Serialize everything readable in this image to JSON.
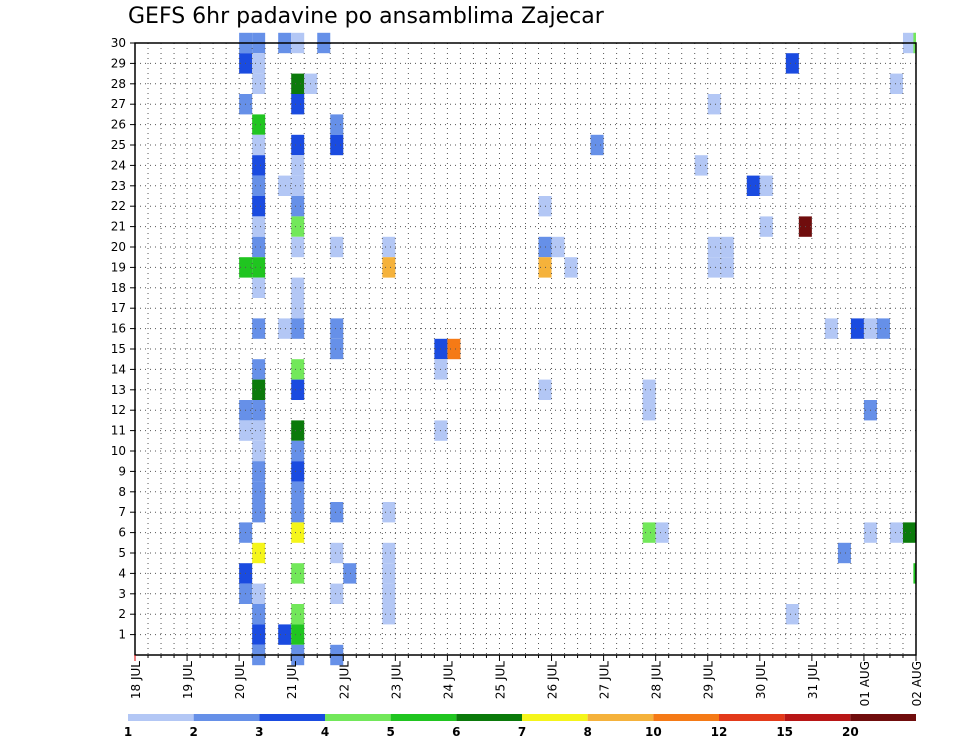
{
  "chart_data": {
    "type": "heatmap",
    "title": "GEFS 6hr padavine po ansamblima Zajecar",
    "xlabel": "",
    "ylabel": "",
    "x_tick_labels": [
      "18 JUL",
      "19 JUL",
      "20 JUL",
      "21 JUL",
      "22 JUL",
      "23 JUL",
      "24 JUL",
      "25 JUL",
      "26 JUL",
      "27 JUL",
      "28 JUL",
      "29 JUL",
      "30 JUL",
      "31 JUL",
      "01 AUG",
      "02 AUG"
    ],
    "y_tick_labels": [
      "1",
      "2",
      "3",
      "4",
      "5",
      "6",
      "7",
      "8",
      "9",
      "10",
      "11",
      "12",
      "13",
      "14",
      "15",
      "16",
      "17",
      "18",
      "19",
      "20",
      "21",
      "22",
      "23",
      "24",
      "25",
      "26",
      "27",
      "28",
      "29",
      "30"
    ],
    "x_range_days": [
      0,
      15
    ],
    "y_range_members": [
      0,
      30
    ],
    "grid": true,
    "time_step_days": 0.25,
    "colorbar": {
      "bounds": [
        "1",
        "2",
        "3",
        "4",
        "5",
        "6",
        "7",
        "8",
        "10",
        "12",
        "15",
        "20"
      ],
      "colors": [
        "#b3c7f5",
        "#6690e8",
        "#1a4be0",
        "#72e85a",
        "#20c520",
        "#0b7a0b",
        "#f5f51a",
        "#f5b23b",
        "#f57a16",
        "#e33a1a",
        "#b81616",
        "#700d0d"
      ]
    },
    "cells": [
      {
        "day": 2.0,
        "member": 30,
        "value": 2.5
      },
      {
        "day": 2.25,
        "member": 30,
        "value": 2.5
      },
      {
        "day": 2.75,
        "member": 30,
        "value": 2.5
      },
      {
        "day": 3.0,
        "member": 30,
        "value": 1.5
      },
      {
        "day": 3.5,
        "member": 30,
        "value": 2.5
      },
      {
        "day": 14.75,
        "member": 30,
        "value": 1.5
      },
      {
        "day": 14.95,
        "member": 30,
        "value": 4.5
      },
      {
        "day": 2.0,
        "member": 29,
        "value": 3.5
      },
      {
        "day": 2.25,
        "member": 29,
        "value": 1.5
      },
      {
        "day": 12.5,
        "member": 29,
        "value": 3.5
      },
      {
        "day": 2.25,
        "member": 28,
        "value": 1.5
      },
      {
        "day": 3.0,
        "member": 28,
        "value": 6.5
      },
      {
        "day": 3.25,
        "member": 28,
        "value": 1.5
      },
      {
        "day": 14.5,
        "member": 28,
        "value": 1.5
      },
      {
        "day": 2.0,
        "member": 27,
        "value": 2.5
      },
      {
        "day": 3.0,
        "member": 27,
        "value": 3.5
      },
      {
        "day": 11.0,
        "member": 27,
        "value": 1.5
      },
      {
        "day": 2.25,
        "member": 26,
        "value": 5.5
      },
      {
        "day": 3.75,
        "member": 26,
        "value": 2.5
      },
      {
        "day": 2.25,
        "member": 25,
        "value": 1.5
      },
      {
        "day": 3.0,
        "member": 25,
        "value": 3.5
      },
      {
        "day": 3.75,
        "member": 25,
        "value": 3.5
      },
      {
        "day": 8.75,
        "member": 25,
        "value": 2.5
      },
      {
        "day": 2.25,
        "member": 24,
        "value": 3.5
      },
      {
        "day": 3.0,
        "member": 24,
        "value": 1.5
      },
      {
        "day": 10.75,
        "member": 24,
        "value": 1.5
      },
      {
        "day": 2.25,
        "member": 23,
        "value": 2.5
      },
      {
        "day": 2.75,
        "member": 23,
        "value": 1.5
      },
      {
        "day": 3.0,
        "member": 23,
        "value": 1.5
      },
      {
        "day": 11.75,
        "member": 23,
        "value": 3.5
      },
      {
        "day": 12.0,
        "member": 23,
        "value": 1.5
      },
      {
        "day": 2.25,
        "member": 22,
        "value": 3.5
      },
      {
        "day": 3.0,
        "member": 22,
        "value": 2.5
      },
      {
        "day": 7.75,
        "member": 22,
        "value": 1.5
      },
      {
        "day": 2.25,
        "member": 21,
        "value": 1.5
      },
      {
        "day": 3.0,
        "member": 21,
        "value": 4.5
      },
      {
        "day": 12.0,
        "member": 21,
        "value": 1.5
      },
      {
        "day": 12.75,
        "member": 21,
        "value": 25
      },
      {
        "day": 2.25,
        "member": 20,
        "value": 2.5
      },
      {
        "day": 3.0,
        "member": 20,
        "value": 1.5
      },
      {
        "day": 3.75,
        "member": 20,
        "value": 1.5
      },
      {
        "day": 4.75,
        "member": 20,
        "value": 1.5
      },
      {
        "day": 7.75,
        "member": 20,
        "value": 2.5
      },
      {
        "day": 8.0,
        "member": 20,
        "value": 1.5
      },
      {
        "day": 11.0,
        "member": 20,
        "value": 1.5
      },
      {
        "day": 11.25,
        "member": 20,
        "value": 1.5
      },
      {
        "day": 2.0,
        "member": 19,
        "value": 5.5
      },
      {
        "day": 2.25,
        "member": 19,
        "value": 5.5
      },
      {
        "day": 4.75,
        "member": 19,
        "value": 9
      },
      {
        "day": 7.75,
        "member": 19,
        "value": 9
      },
      {
        "day": 8.25,
        "member": 19,
        "value": 1.5
      },
      {
        "day": 11.0,
        "member": 19,
        "value": 1.5
      },
      {
        "day": 11.25,
        "member": 19,
        "value": 1.5
      },
      {
        "day": 2.25,
        "member": 18,
        "value": 1.5
      },
      {
        "day": 3.0,
        "member": 18,
        "value": 1.5
      },
      {
        "day": 3.0,
        "member": 17,
        "value": 1.5
      },
      {
        "day": 2.25,
        "member": 16,
        "value": 2.5
      },
      {
        "day": 2.75,
        "member": 16,
        "value": 1.5
      },
      {
        "day": 3.0,
        "member": 16,
        "value": 2.5
      },
      {
        "day": 3.75,
        "member": 16,
        "value": 2.5
      },
      {
        "day": 13.25,
        "member": 16,
        "value": 1.5
      },
      {
        "day": 13.75,
        "member": 16,
        "value": 3.5
      },
      {
        "day": 14.0,
        "member": 16,
        "value": 1.5
      },
      {
        "day": 14.25,
        "member": 16,
        "value": 2.5
      },
      {
        "day": 3.75,
        "member": 15,
        "value": 2.5
      },
      {
        "day": 5.75,
        "member": 15,
        "value": 3.5
      },
      {
        "day": 6.0,
        "member": 15,
        "value": 11
      },
      {
        "day": 2.25,
        "member": 14,
        "value": 2.5
      },
      {
        "day": 3.0,
        "member": 14,
        "value": 4.5
      },
      {
        "day": 5.75,
        "member": 14,
        "value": 1.5
      },
      {
        "day": 2.25,
        "member": 13,
        "value": 6.5
      },
      {
        "day": 3.0,
        "member": 13,
        "value": 3.5
      },
      {
        "day": 7.75,
        "member": 13,
        "value": 1.5
      },
      {
        "day": 9.75,
        "member": 13,
        "value": 1.5
      },
      {
        "day": 2.0,
        "member": 12,
        "value": 2.5
      },
      {
        "day": 2.25,
        "member": 12,
        "value": 2.5
      },
      {
        "day": 9.75,
        "member": 12,
        "value": 1.5
      },
      {
        "day": 14.0,
        "member": 12,
        "value": 2.5
      },
      {
        "day": 2.0,
        "member": 11,
        "value": 1.5
      },
      {
        "day": 2.25,
        "member": 11,
        "value": 1.5
      },
      {
        "day": 3.0,
        "member": 11,
        "value": 6.5
      },
      {
        "day": 5.75,
        "member": 11,
        "value": 1.5
      },
      {
        "day": 2.25,
        "member": 10,
        "value": 1.5
      },
      {
        "day": 3.0,
        "member": 10,
        "value": 2.5
      },
      {
        "day": 2.25,
        "member": 9,
        "value": 2.5
      },
      {
        "day": 3.0,
        "member": 9,
        "value": 3.5
      },
      {
        "day": 2.25,
        "member": 8,
        "value": 2.5
      },
      {
        "day": 3.0,
        "member": 8,
        "value": 2.5
      },
      {
        "day": 2.25,
        "member": 7,
        "value": 2.5
      },
      {
        "day": 3.0,
        "member": 7,
        "value": 2.5
      },
      {
        "day": 3.75,
        "member": 7,
        "value": 2.5
      },
      {
        "day": 4.75,
        "member": 7,
        "value": 1.5
      },
      {
        "day": 2.0,
        "member": 6,
        "value": 2.5
      },
      {
        "day": 3.0,
        "member": 6,
        "value": 7.5
      },
      {
        "day": 9.75,
        "member": 6,
        "value": 4.5
      },
      {
        "day": 10.0,
        "member": 6,
        "value": 1.5
      },
      {
        "day": 14.0,
        "member": 6,
        "value": 1.5
      },
      {
        "day": 14.5,
        "member": 6,
        "value": 1.5
      },
      {
        "day": 14.75,
        "member": 6,
        "value": 6.5
      },
      {
        "day": 2.25,
        "member": 5,
        "value": 7.5
      },
      {
        "day": 3.75,
        "member": 5,
        "value": 1.5
      },
      {
        "day": 4.75,
        "member": 5,
        "value": 1.5
      },
      {
        "day": 13.5,
        "member": 5,
        "value": 2.5
      },
      {
        "day": 2.0,
        "member": 4,
        "value": 3.5
      },
      {
        "day": 3.0,
        "member": 4,
        "value": 4.5
      },
      {
        "day": 4.0,
        "member": 4,
        "value": 2.5
      },
      {
        "day": 4.75,
        "member": 4,
        "value": 1.5
      },
      {
        "day": 14.95,
        "member": 4,
        "value": 5.5
      },
      {
        "day": 2.0,
        "member": 3,
        "value": 2.5
      },
      {
        "day": 2.25,
        "member": 3,
        "value": 1.5
      },
      {
        "day": 3.75,
        "member": 3,
        "value": 1.5
      },
      {
        "day": 4.75,
        "member": 3,
        "value": 1.5
      },
      {
        "day": 2.25,
        "member": 2,
        "value": 2.5
      },
      {
        "day": 3.0,
        "member": 2,
        "value": 4.5
      },
      {
        "day": 4.75,
        "member": 2,
        "value": 1.5
      },
      {
        "day": 12.5,
        "member": 2,
        "value": 1.5
      },
      {
        "day": 2.25,
        "member": 1,
        "value": 3.5
      },
      {
        "day": 2.75,
        "member": 1,
        "value": 3.5
      },
      {
        "day": 3.0,
        "member": 1,
        "value": 5.5
      },
      {
        "day": 2.25,
        "member": 0,
        "value": 2.5
      },
      {
        "day": 3.0,
        "member": 0,
        "value": 2.5
      },
      {
        "day": 3.75,
        "member": 0,
        "value": 2.5
      }
    ]
  }
}
